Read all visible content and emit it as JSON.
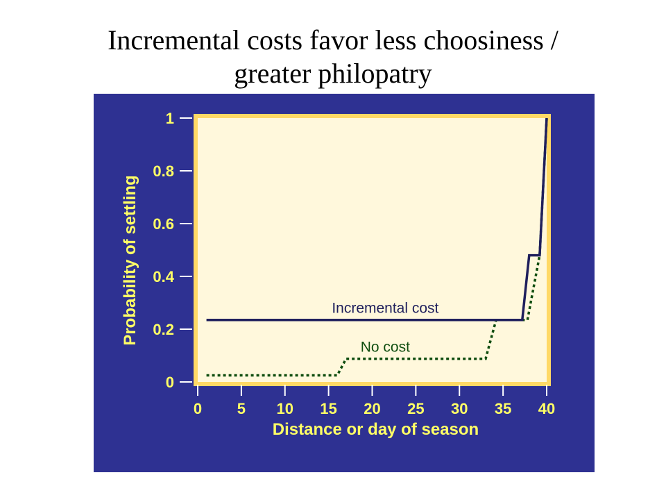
{
  "title": {
    "line1": "Incremental costs favor less choosiness /",
    "line2": "greater philopatry"
  },
  "colors": {
    "panel": "#2e3192",
    "plot_bg": "#fff8dc",
    "plot_border": "#ffd966",
    "axis_text": "#ffff66",
    "incremental_line": "#1f1f5c",
    "no_cost_line": "#0f4d0f"
  },
  "chart_data": {
    "type": "line",
    "xlabel": "Distance or day of season",
    "ylabel": "Probability  of settling",
    "xlim": [
      0,
      40
    ],
    "ylim": [
      0,
      1
    ],
    "x_ticks": [
      "0",
      "5",
      "10",
      "15",
      "20",
      "25",
      "30",
      "35",
      "40"
    ],
    "y_ticks": [
      "0",
      "0.2",
      "0.4",
      "0.6",
      "0.8",
      "1"
    ],
    "series": [
      {
        "name": "Incremental cost",
        "style": "solid",
        "points": [
          [
            1,
            0.235
          ],
          [
            37.2,
            0.235
          ],
          [
            38.0,
            0.48
          ],
          [
            39.2,
            0.48
          ],
          [
            40.0,
            1.0
          ]
        ]
      },
      {
        "name": "No  cost",
        "style": "dotted",
        "points": [
          [
            1,
            0.025
          ],
          [
            16.0,
            0.025
          ],
          [
            17.0,
            0.088
          ],
          [
            33.0,
            0.088
          ],
          [
            34.2,
            0.235
          ],
          [
            37.8,
            0.235
          ],
          [
            39.2,
            0.48
          ],
          [
            40.0,
            1.0
          ]
        ]
      }
    ]
  }
}
